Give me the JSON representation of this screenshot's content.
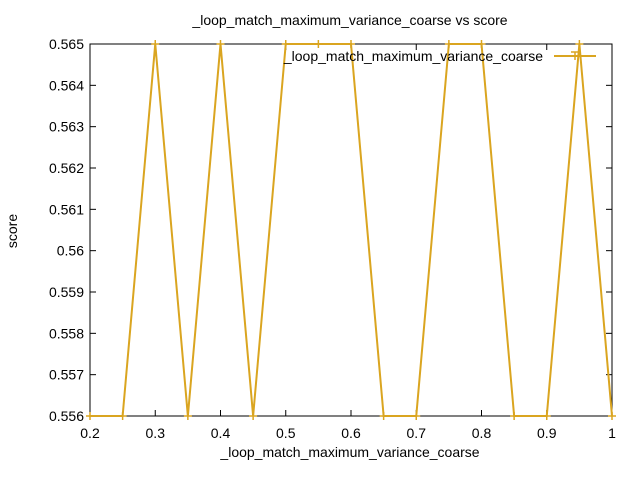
{
  "chart_data": {
    "type": "line",
    "title": "_loop_match_maximum_variance_coarse vs score",
    "xlabel": "_loop_match_maximum_variance_coarse",
    "ylabel": "score",
    "xlim": [
      0.2,
      1.0
    ],
    "ylim": [
      0.556,
      0.565
    ],
    "xticks": [
      "0.2",
      "0.3",
      "0.4",
      "0.5",
      "0.6",
      "0.7",
      "0.8",
      "0.9",
      "1"
    ],
    "yticks": [
      "0.556",
      "0.557",
      "0.558",
      "0.559",
      "0.56",
      "0.561",
      "0.562",
      "0.563",
      "0.564",
      "0.565"
    ],
    "grid": false,
    "legend_position": "top-right",
    "series": [
      {
        "name": "_loop_match_maximum_variance_coarse",
        "color": "#DAA520",
        "marker": "plus",
        "x": [
          0.2,
          0.25,
          0.3,
          0.35,
          0.4,
          0.45,
          0.5,
          0.55,
          0.6,
          0.65,
          0.7,
          0.75,
          0.8,
          0.85,
          0.9,
          0.95,
          1.0
        ],
        "y": [
          0.556,
          0.556,
          0.565,
          0.556,
          0.565,
          0.556,
          0.565,
          0.565,
          0.565,
          0.556,
          0.556,
          0.565,
          0.565,
          0.556,
          0.556,
          0.565,
          0.556
        ]
      }
    ]
  }
}
